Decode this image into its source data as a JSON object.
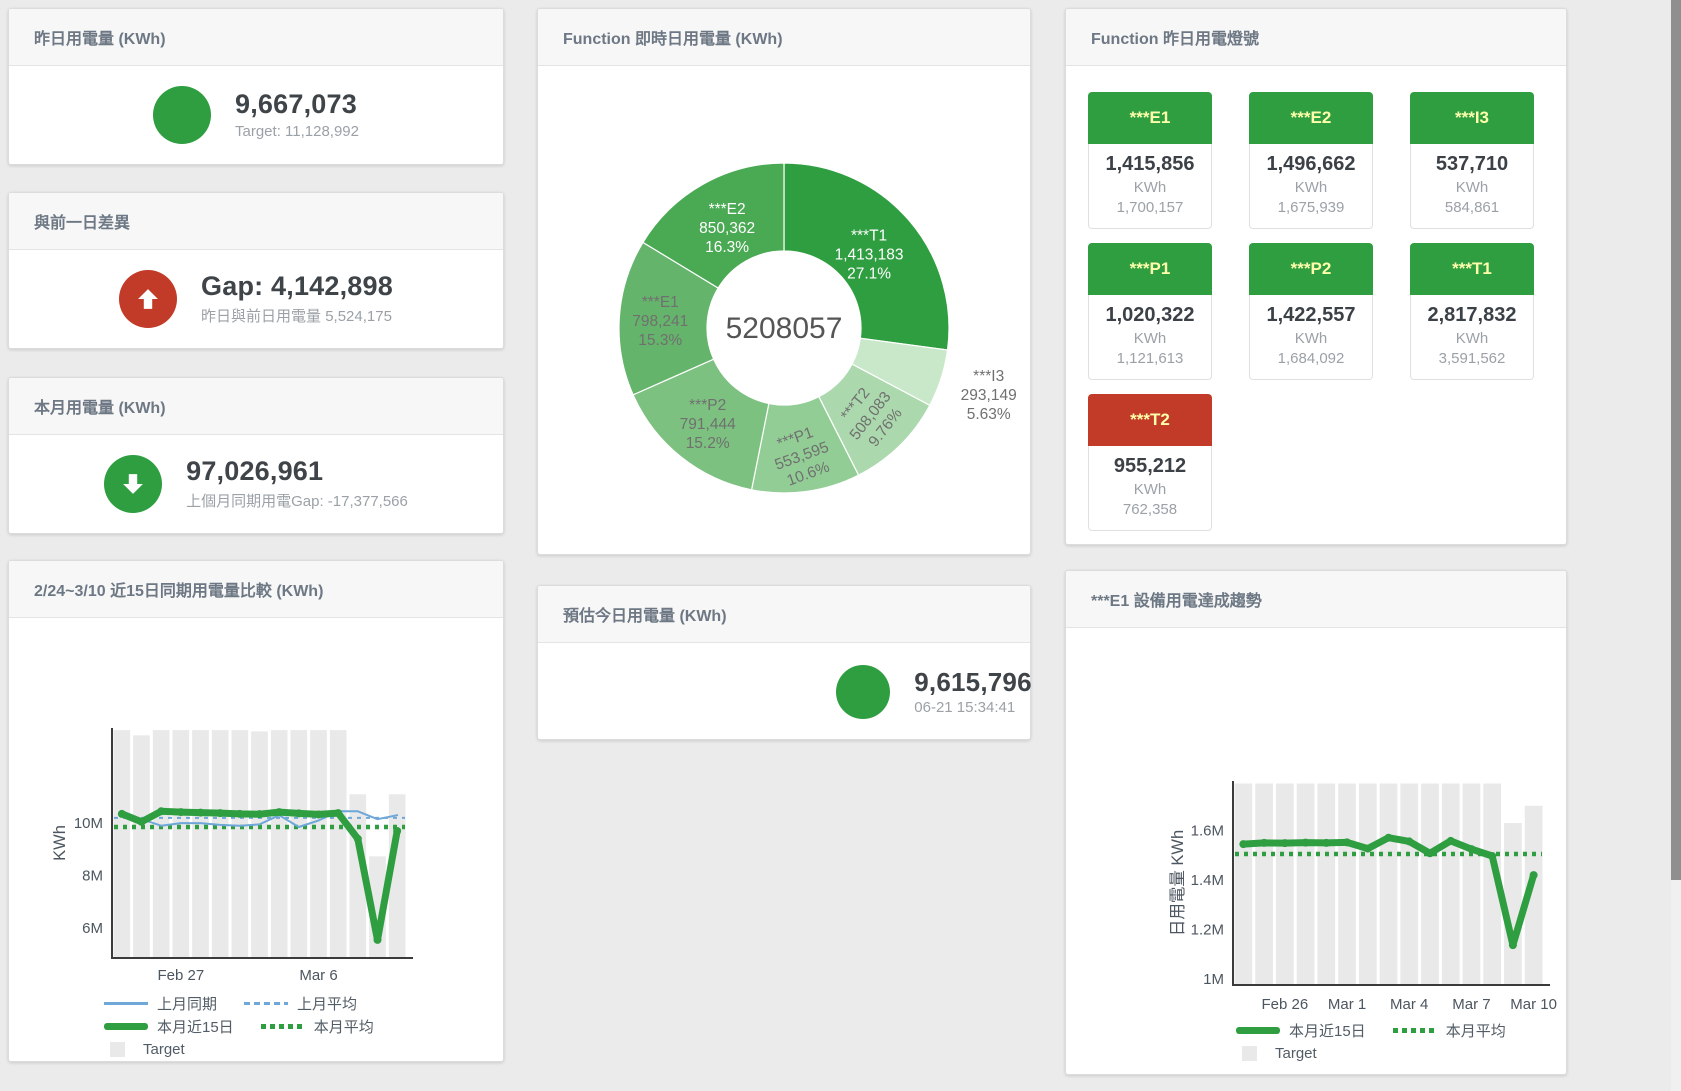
{
  "panels": {
    "yesterday": {
      "title": "昨日用電量 (KWh)",
      "value": "9,667,073",
      "subtitle": "Target: 11,128,992",
      "status_color": "#2f9e41"
    },
    "diff": {
      "title": "與前一日差異",
      "value": "Gap: 4,142,898",
      "subtitle": "昨日與前日用電量 5,524,175",
      "status_color": "#c13b28",
      "direction": "up"
    },
    "month": {
      "title": "本月用電量 (KWh)",
      "value": "97,026,961",
      "subtitle": "上個月同期用電Gap: -17,377,566",
      "status_color": "#2f9e41",
      "direction": "down"
    },
    "estimate": {
      "title": "預估今日用電量 (KWh)",
      "value": "9,615,796",
      "subtitle": "06-21 15:34:41",
      "status_color": "#2f9e41"
    },
    "lights": {
      "title": "Function 昨日用電燈號",
      "unit": "KWh",
      "green": "#2f9e41",
      "red": "#c13b28",
      "tiles": [
        {
          "label": "***E1",
          "value": "1,415,856",
          "target": "1,700,157",
          "status": "green"
        },
        {
          "label": "***E2",
          "value": "1,496,662",
          "target": "1,675,939",
          "status": "green"
        },
        {
          "label": "***I3",
          "value": "537,710",
          "target": "584,861",
          "status": "green"
        },
        {
          "label": "***P1",
          "value": "1,020,322",
          "target": "1,121,613",
          "status": "green"
        },
        {
          "label": "***P2",
          "value": "1,422,557",
          "target": "1,684,092",
          "status": "green"
        },
        {
          "label": "***T1",
          "value": "2,817,832",
          "target": "3,591,562",
          "status": "green"
        },
        {
          "label": "***T2",
          "value": "955,212",
          "target": "762,358",
          "status": "red"
        }
      ]
    }
  },
  "chart_data": [
    {
      "type": "pie",
      "title": "Function 即時日用電量 (KWh)",
      "center_total": "5208057",
      "slices": [
        {
          "name": "***T1",
          "value": 1413183,
          "value_label": "1,413,183",
          "pct": "27.1%",
          "pct_value": 27.1,
          "color": "#2f9e41"
        },
        {
          "name": "***I3",
          "value": 293149,
          "value_label": "293,149",
          "pct": "5.63%",
          "pct_value": 5.63,
          "color": "#c8e8c9"
        },
        {
          "name": "***T2",
          "value": 508083,
          "value_label": "508,083",
          "pct": "9.76%",
          "pct_value": 9.76,
          "color": "#abd9ad"
        },
        {
          "name": "***P1",
          "value": 553595,
          "value_label": "553,595",
          "pct": "10.6%",
          "pct_value": 10.6,
          "color": "#92cd95"
        },
        {
          "name": "***P2",
          "value": 791444,
          "value_label": "791,444",
          "pct": "15.2%",
          "pct_value": 15.2,
          "color": "#7cc180"
        },
        {
          "name": "***E1",
          "value": 798241,
          "value_label": "798,241",
          "pct": "15.3%",
          "pct_value": 15.3,
          "color": "#65b46b"
        },
        {
          "name": "***E2",
          "value": 850362,
          "value_label": "850,362",
          "pct": "16.3%",
          "pct_value": 16.3,
          "color": "#4aa953"
        }
      ]
    },
    {
      "type": "line",
      "title": "2/24~3/10 近15日同期用電量比較 (KWh)",
      "ylabel": "KWh",
      "ylim": [
        4.85,
        13.63
      ],
      "yticks": [
        {
          "v": 6,
          "label": "6M"
        },
        {
          "v": 8,
          "label": "8M"
        },
        {
          "v": 10,
          "label": "10M"
        }
      ],
      "x_count": 15,
      "xticks": [
        {
          "i": 3,
          "label": "Feb 27"
        },
        {
          "i": 10,
          "label": "Mar 6"
        }
      ],
      "target_bars": {
        "name": "Target",
        "color": "#e9e9e9",
        "values": [
          13.55,
          13.35,
          13.55,
          13.55,
          13.55,
          13.55,
          13.55,
          13.5,
          13.55,
          13.55,
          13.55,
          13.55,
          11.1,
          8.73,
          11.1
        ]
      },
      "series": [
        {
          "name": "上月同期",
          "color": "#6ea7d8",
          "width": 2,
          "values": [
            10.46,
            10.15,
            9.9,
            10.0,
            10.0,
            9.93,
            9.9,
            9.95,
            10.3,
            9.85,
            10.1,
            10.45,
            10.45,
            10.15,
            10.3
          ]
        },
        {
          "name": "本月近15日",
          "color": "#2f9e41",
          "width": 7,
          "values": [
            10.35,
            10.05,
            10.45,
            10.42,
            10.4,
            10.38,
            10.35,
            10.34,
            10.42,
            10.37,
            10.33,
            10.38,
            9.4,
            5.54,
            9.7
          ]
        }
      ],
      "ref_lines": [
        {
          "name": "上月平均",
          "color": "#6ea7d8",
          "width": 2,
          "dash": "4 5",
          "value": 10.2
        },
        {
          "name": "本月平均",
          "color": "#2f9e41",
          "width": 4.5,
          "dash": "4 5",
          "value": 9.85
        }
      ],
      "legend_rows": [
        [
          {
            "label": "上月同期",
            "swatch": "solid",
            "color": "#6ea7d8"
          },
          {
            "label": "上月平均",
            "swatch": "dash",
            "color": "#6ea7d8"
          }
        ],
        [
          {
            "label": "本月近15日",
            "swatch": "thick",
            "color": "#2f9e41"
          },
          {
            "label": "本月平均",
            "swatch": "dots",
            "color": "#2f9e41"
          }
        ],
        [
          {
            "label": "Target",
            "swatch": "box",
            "color": "#e9e9e9"
          }
        ]
      ]
    },
    {
      "type": "line",
      "title": "***E1 設備用電達成趨勢",
      "ylabel": "日用電量 KWh",
      "ylim": [
        0.976,
        1.8
      ],
      "yticks": [
        {
          "v": 1,
          "label": "1M"
        },
        {
          "v": 1.2,
          "label": "1.2M"
        },
        {
          "v": 1.4,
          "label": "1.4M"
        },
        {
          "v": 1.6,
          "label": "1.6M"
        }
      ],
      "x_count": 15,
      "xticks": [
        {
          "i": 2,
          "label": "Feb 26"
        },
        {
          "i": 5,
          "label": "Mar 1"
        },
        {
          "i": 8,
          "label": "Mar 4"
        },
        {
          "i": 11,
          "label": "Mar 7"
        },
        {
          "i": 14,
          "label": "Mar 10"
        }
      ],
      "target_bars": {
        "name": "Target",
        "color": "#e9e9e9",
        "values": [
          1.79,
          1.79,
          1.79,
          1.79,
          1.79,
          1.79,
          1.79,
          1.79,
          1.79,
          1.79,
          1.79,
          1.79,
          1.79,
          1.63,
          1.7
        ]
      },
      "series": [
        {
          "name": "本月近15日",
          "color": "#2f9e41",
          "width": 7,
          "values": [
            1.545,
            1.55,
            1.549,
            1.551,
            1.55,
            1.552,
            1.527,
            1.571,
            1.556,
            1.508,
            1.558,
            1.525,
            1.497,
            1.137,
            1.42
          ]
        }
      ],
      "ref_lines": [
        {
          "name": "本月平均",
          "color": "#2f9e41",
          "width": 4.5,
          "dash": "4 5",
          "value": 1.505
        }
      ],
      "legend_rows": [
        [
          {
            "label": "本月近15日",
            "swatch": "thick",
            "color": "#2f9e41"
          },
          {
            "label": "本月平均",
            "swatch": "dots",
            "color": "#2f9e41"
          }
        ],
        [
          {
            "label": "Target",
            "swatch": "box",
            "color": "#e9e9e9"
          }
        ]
      ]
    }
  ]
}
